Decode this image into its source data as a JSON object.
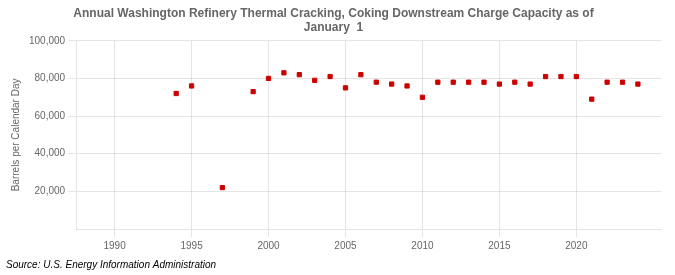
{
  "chart_data": {
    "type": "scatter",
    "title": "Annual Washington Refinery Thermal Cracking, Coking Downstream Charge Capacity as of\nJanuary  1",
    "ylabel": "Barrels per Calendar Day",
    "source": "Source: U.S. Energy Information Administration",
    "x": [
      1994,
      1995,
      1997,
      1999,
      2000,
      2001,
      2002,
      2003,
      2004,
      2005,
      2006,
      2007,
      2008,
      2009,
      2010,
      2011,
      2012,
      2013,
      2014,
      2015,
      2016,
      2017,
      2018,
      2019,
      2020,
      2021,
      2022,
      2023,
      2024
    ],
    "values": [
      72000,
      76000,
      22000,
      73000,
      80000,
      83000,
      82000,
      79000,
      81000,
      75000,
      82000,
      78000,
      77000,
      76000,
      70000,
      78000,
      78000,
      78000,
      78000,
      77000,
      78000,
      77000,
      81000,
      81000,
      81000,
      69000,
      78000,
      78000,
      77000
    ],
    "color": "#cc0000",
    "marker": "square",
    "xlim": [
      1987.5,
      2025.5
    ],
    "xticks": [
      1990,
      1995,
      2000,
      2005,
      2010,
      2015,
      2020
    ],
    "ylim": [
      0,
      100000
    ],
    "yticks": [
      {
        "value": 20000,
        "label": "20,000"
      },
      {
        "value": 40000,
        "label": "40,000"
      },
      {
        "value": 60000,
        "label": "60,000"
      },
      {
        "value": 80000,
        "label": "80,000"
      },
      {
        "value": 100000,
        "label": "100,000"
      }
    ],
    "grid": true
  }
}
